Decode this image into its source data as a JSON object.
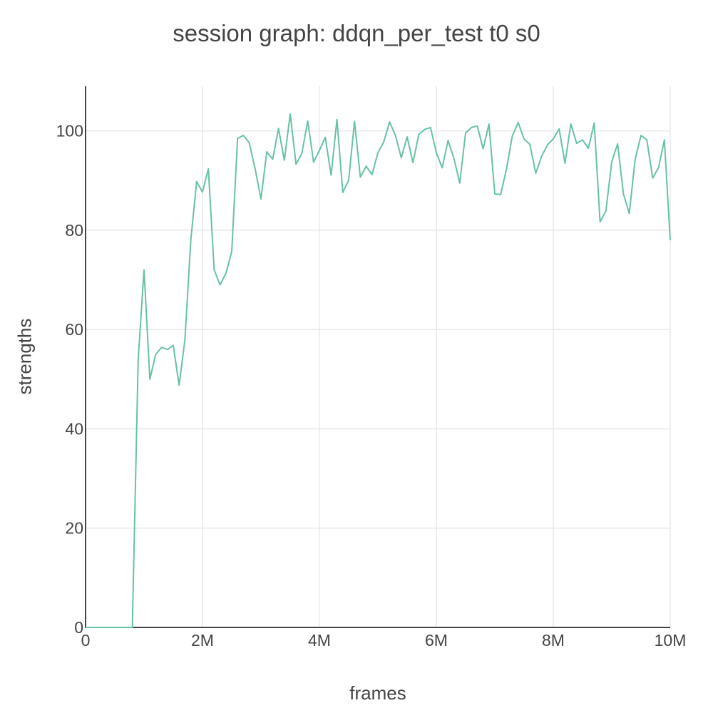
{
  "chart_data": {
    "type": "line",
    "title": "session graph: ddqn_per_test t0 s0",
    "xlabel": "frames",
    "ylabel": "strengths",
    "xlim": [
      0,
      10000000
    ],
    "ylim": [
      0,
      109
    ],
    "grid": true,
    "x_ticks": [
      {
        "value": 0,
        "label": "0"
      },
      {
        "value": 2000000,
        "label": "2M"
      },
      {
        "value": 4000000,
        "label": "4M"
      },
      {
        "value": 6000000,
        "label": "6M"
      },
      {
        "value": 8000000,
        "label": "8M"
      },
      {
        "value": 10000000,
        "label": "10M"
      }
    ],
    "y_ticks": [
      {
        "value": 0,
        "label": "0"
      },
      {
        "value": 20,
        "label": "20"
      },
      {
        "value": 40,
        "label": "40"
      },
      {
        "value": 60,
        "label": "60"
      },
      {
        "value": 80,
        "label": "80"
      },
      {
        "value": 100,
        "label": "100"
      }
    ],
    "series": [
      {
        "color": "#66c2a5",
        "x": [
          0,
          100000,
          200000,
          300000,
          400000,
          500000,
          600000,
          700000,
          800000,
          900000,
          1000000,
          1100000,
          1200000,
          1300000,
          1400000,
          1500000,
          1600000,
          1700000,
          1800000,
          1900000,
          2000000,
          2100000,
          2200000,
          2300000,
          2400000,
          2500000,
          2600000,
          2700000,
          2800000,
          2900000,
          3000000,
          3100000,
          3200000,
          3300000,
          3400000,
          3500000,
          3600000,
          3700000,
          3800000,
          3900000,
          4000000,
          4100000,
          4200000,
          4300000,
          4400000,
          4500000,
          4600000,
          4700000,
          4800000,
          4900000,
          5000000,
          5100000,
          5200000,
          5300000,
          5400000,
          5500000,
          5600000,
          5700000,
          5800000,
          5900000,
          6000000,
          6100000,
          6200000,
          6300000,
          6400000,
          6500000,
          6600000,
          6700000,
          6800000,
          6900000,
          7000000,
          7100000,
          7200000,
          7300000,
          7400000,
          7500000,
          7600000,
          7700000,
          7800000,
          7900000,
          8000000,
          8100000,
          8200000,
          8300000,
          8400000,
          8500000,
          8600000,
          8700000,
          8800000,
          8900000,
          9000000,
          9100000,
          9200000,
          9300000,
          9400000,
          9500000,
          9600000,
          9700000,
          9800000,
          9900000,
          10000000
        ],
        "y": [
          0,
          0,
          0,
          0,
          0,
          0,
          0,
          0,
          0,
          54,
          72,
          50,
          55,
          56.4,
          56,
          56.8,
          48.8,
          58,
          78,
          89.8,
          87.7,
          92.4,
          72,
          69,
          71.3,
          75.7,
          98.5,
          99.1,
          97.6,
          92.4,
          86.3,
          95.8,
          94.3,
          100.5,
          94.1,
          103.4,
          93.3,
          95.5,
          102,
          93.7,
          96.1,
          98.7,
          91.1,
          102.3,
          87.6,
          90.1,
          101.9,
          90.7,
          92.9,
          91.2,
          95.6,
          97.8,
          101.8,
          99.1,
          94.6,
          98.8,
          93.6,
          99.3,
          100.3,
          100.7,
          95.6,
          92.6,
          98.1,
          94.5,
          89.5,
          99.6,
          100.7,
          101,
          96.4,
          101.4,
          87.3,
          87.2,
          92.4,
          99,
          101.7,
          98.4,
          97.3,
          91.5,
          94.9,
          97.2,
          98.4,
          100.4,
          93.5,
          101.4,
          97.5,
          98.2,
          96.5,
          101.6,
          81.7,
          83.9,
          93.8,
          97.4,
          87.3,
          83.4,
          94.3,
          99.1,
          98.2,
          90.5,
          92.6,
          98.2,
          78
        ]
      }
    ]
  }
}
